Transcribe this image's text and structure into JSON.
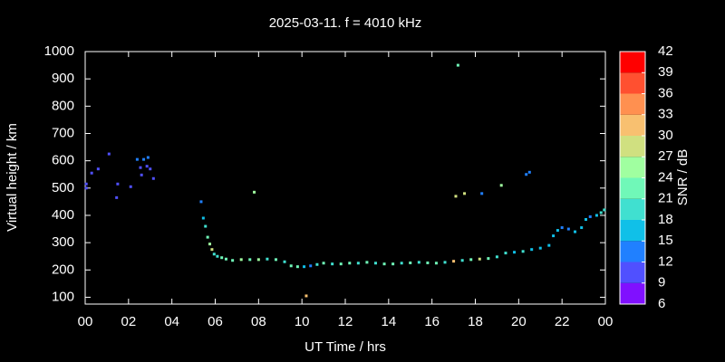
{
  "chart_data": {
    "type": "scatter",
    "title": "2025-03-11. f = 4010 kHz",
    "xlabel": "UT Time / hrs",
    "ylabel": "Virtual height / km",
    "x": [
      0.05,
      0.05,
      0.3,
      0.6,
      1.1,
      1.5,
      1.45,
      2.1,
      2.4,
      2.55,
      2.6,
      2.7,
      2.85,
      2.9,
      3.0,
      3.15,
      5.35,
      5.45,
      5.55,
      5.65,
      5.75,
      5.85,
      5.95,
      6.1,
      6.3,
      6.5,
      6.8,
      7.2,
      7.6,
      7.8,
      8.0,
      8.4,
      8.8,
      9.2,
      9.5,
      9.8,
      10.1,
      10.2,
      10.4,
      10.7,
      11.0,
      11.4,
      11.8,
      12.2,
      12.6,
      13.0,
      13.4,
      13.8,
      14.2,
      14.6,
      15.0,
      15.4,
      15.8,
      16.2,
      16.6,
      17.0,
      17.1,
      17.2,
      17.4,
      17.5,
      17.8,
      18.2,
      18.3,
      18.6,
      19.0,
      19.2,
      19.4,
      19.8,
      20.2,
      20.35,
      20.5,
      20.6,
      21.0,
      21.4,
      21.6,
      21.8,
      22.0,
      22.3,
      22.6,
      22.9,
      23.1,
      23.3,
      23.6,
      23.8,
      23.95
    ],
    "values": [
      515,
      500,
      555,
      570,
      625,
      515,
      465,
      505,
      605,
      575,
      548,
      605,
      580,
      612,
      570,
      535,
      450,
      390,
      360,
      320,
      295,
      275,
      258,
      250,
      245,
      240,
      235,
      238,
      238,
      485,
      238,
      240,
      238,
      230,
      215,
      212,
      212,
      105,
      215,
      220,
      225,
      222,
      222,
      225,
      225,
      228,
      225,
      222,
      222,
      225,
      226,
      228,
      226,
      225,
      228,
      232,
      470,
      950,
      235,
      480,
      238,
      240,
      480,
      242,
      248,
      510,
      262,
      265,
      268,
      550,
      558,
      275,
      280,
      290,
      325,
      345,
      355,
      350,
      340,
      355,
      385,
      395,
      400,
      410,
      420
    ],
    "snr": [
      11,
      10,
      11,
      11,
      10,
      11,
      11,
      10,
      14,
      11,
      11,
      14,
      11,
      14,
      11,
      11,
      14,
      17,
      19,
      22,
      26,
      29,
      20,
      19,
      22,
      23,
      22,
      24,
      23,
      25,
      24,
      19,
      22,
      20,
      22,
      22,
      17,
      32,
      13,
      19,
      22,
      20,
      22,
      22,
      19,
      22,
      20,
      22,
      23,
      20,
      22,
      20,
      22,
      23,
      20,
      32,
      28,
      23,
      20,
      28,
      22,
      28,
      12,
      22,
      20,
      25,
      19,
      17,
      19,
      14,
      13,
      16,
      16,
      17,
      16,
      15,
      14,
      13,
      15,
      17,
      16,
      14,
      15,
      18,
      20
    ],
    "xlim": [
      0,
      24
    ],
    "xticks": [
      {
        "value": 0,
        "label": "00"
      },
      {
        "value": 2,
        "label": "02"
      },
      {
        "value": 4,
        "label": "04"
      },
      {
        "value": 6,
        "label": "06"
      },
      {
        "value": 8,
        "label": "08"
      },
      10,
      12,
      14,
      16,
      18,
      20,
      22,
      {
        "value": 24,
        "label": "00"
      }
    ],
    "ylim": [
      75,
      1000
    ],
    "yticks": [
      100,
      200,
      300,
      400,
      500,
      600,
      700,
      800,
      900,
      1000
    ],
    "colorbar": {
      "label": "SNR / dB",
      "lim": [
        6,
        42
      ],
      "ticks": [
        6,
        9,
        12,
        15,
        18,
        21,
        24,
        27,
        30,
        33,
        36,
        39,
        42
      ],
      "colors": [
        "#8010ff",
        "#5050ff",
        "#2080ff",
        "#10c0e8",
        "#40e0d0",
        "#70f8b8",
        "#a0ffa0",
        "#d0e080",
        "#f8c070",
        "#ff9050",
        "#ff5030",
        "#ff0000"
      ]
    }
  }
}
